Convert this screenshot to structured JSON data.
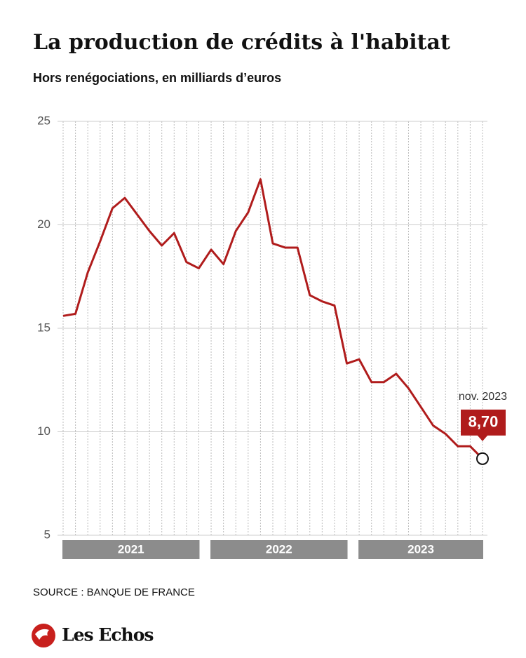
{
  "chart_data": {
    "type": "line",
    "title": "La production de crédits à l'habitat",
    "subtitle": "Hors renégociations, en milliards d’euros",
    "categories": [
      null,
      null,
      null,
      null,
      null,
      null,
      null,
      null,
      null,
      null,
      null,
      null,
      null,
      null,
      null,
      null,
      null,
      null,
      null,
      null,
      null,
      null,
      null,
      null,
      null,
      null,
      null,
      null,
      null,
      null,
      null,
      null,
      null,
      null,
      null
    ],
    "groups": [
      {
        "label": "2021",
        "count": 12
      },
      {
        "label": "2022",
        "count": 12
      },
      {
        "label": "2023",
        "count": 11
      }
    ],
    "series": [
      {
        "name": "Production de crédits",
        "color": "#b01c1c",
        "values": [
          15.6,
          15.7,
          17.7,
          19.2,
          20.8,
          21.3,
          20.5,
          19.7,
          19.0,
          19.6,
          18.2,
          17.9,
          18.8,
          18.1,
          19.7,
          20.6,
          22.2,
          19.1,
          18.9,
          18.9,
          16.6,
          16.3,
          16.1,
          13.3,
          13.5,
          12.4,
          12.4,
          12.8,
          12.1,
          11.2,
          10.3,
          9.9,
          9.3,
          9.3,
          8.7
        ],
        "value_labels": [
          null,
          null,
          null,
          null,
          null,
          null,
          null,
          null,
          null,
          null,
          null,
          null,
          null,
          null,
          null,
          null,
          null,
          null,
          null,
          null,
          null,
          null,
          null,
          null,
          null,
          null,
          null,
          null,
          null,
          null,
          null,
          null,
          null,
          null,
          "8,70"
        ]
      }
    ],
    "annotation": "nov. 2023",
    "ylim": [
      5,
      25
    ],
    "yticks": [
      5,
      10,
      15,
      20,
      25
    ],
    "grid": true,
    "source": "SOURCE : BANQUE DE FRANCE",
    "brand": "Les Echos"
  }
}
